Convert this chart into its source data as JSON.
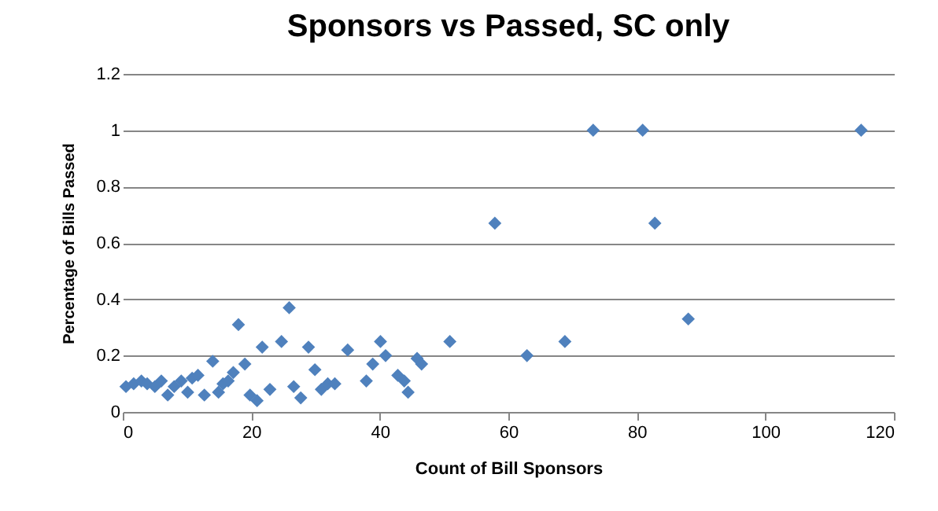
{
  "chart_data": {
    "type": "scatter",
    "title": "Sponsors vs Passed, SC only",
    "xlabel": "Count of Bill Sponsors",
    "ylabel": "Percentage of Bills Passed",
    "x": [
      0.5,
      1.7,
      2.9,
      3.8,
      5,
      6,
      7,
      8,
      9.1,
      10.1,
      10.8,
      11.7,
      12.7,
      14,
      14.9,
      15.6,
      16.4,
      17.2,
      18,
      19,
      19.8,
      20.9,
      21.7,
      22.9,
      24.7,
      25.9,
      26.6,
      27.7,
      28.9,
      29.9,
      30.9,
      31.9,
      33,
      35,
      37.9,
      38.9,
      40.1,
      40.9,
      42.8,
      43.8,
      44.4,
      45.8,
      46.5,
      50.9,
      57.9,
      62.9,
      68.8,
      73.2,
      80.9,
      82.8,
      88,
      114.9
    ],
    "series": [
      {
        "color": "#4f81bd",
        "values": [
          0.09,
          0.1,
          0.11,
          0.1,
          0.09,
          0.11,
          0.06,
          0.09,
          0.11,
          0.07,
          0.12,
          0.13,
          0.06,
          0.18,
          0.07,
          0.1,
          0.11,
          0.14,
          0.31,
          0.17,
          0.06,
          0.04,
          0.23,
          0.08,
          0.25,
          0.37,
          0.09,
          0.05,
          0.23,
          0.15,
          0.08,
          0.1,
          0.1,
          0.22,
          0.11,
          0.17,
          0.25,
          0.2,
          0.13,
          0.11,
          0.07,
          0.19,
          0.17,
          0.25,
          0.67,
          0.2,
          0.25,
          1,
          1,
          0.67,
          0.33,
          1
        ]
      }
    ],
    "xlim": [
      0,
      120
    ],
    "xticks": [
      0,
      20,
      40,
      60,
      80,
      100,
      120
    ],
    "ylim": [
      0,
      1.2
    ],
    "yticks": [
      0,
      0.2,
      0.4,
      0.6,
      0.8,
      1,
      1.2
    ],
    "grid": "y",
    "marker": "diamond"
  }
}
